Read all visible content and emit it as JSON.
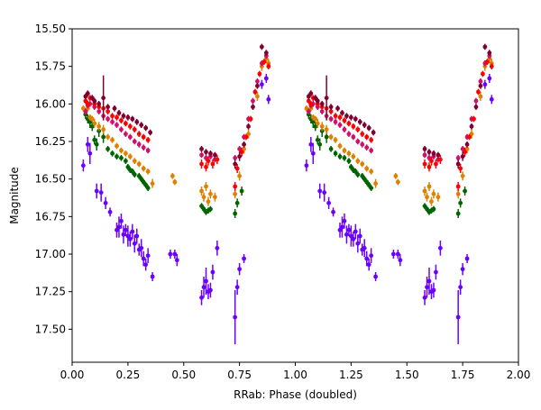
{
  "chart_data": {
    "type": "scatter",
    "xlabel": "RRab: Phase (doubled)",
    "ylabel": "Magnitude",
    "xlim": [
      0.0,
      2.0
    ],
    "ylim": [
      17.72,
      15.5
    ],
    "y_inverted": true,
    "grid": false,
    "legend": "none",
    "xticks": [
      "0.00",
      "0.25",
      "0.50",
      "0.75",
      "1.00",
      "1.25",
      "1.50",
      "1.75",
      "2.00"
    ],
    "yticks": [
      "15.50",
      "15.75",
      "16.00",
      "16.25",
      "16.50",
      "16.75",
      "17.00",
      "17.25",
      "17.50"
    ],
    "xtick_values": [
      0.0,
      0.25,
      0.5,
      0.75,
      1.0,
      1.25,
      1.5,
      1.75,
      2.0
    ],
    "ytick_values": [
      15.5,
      15.75,
      16.0,
      16.25,
      16.5,
      16.75,
      17.0,
      17.25,
      17.5
    ],
    "series": [
      {
        "color": "#6a00ff",
        "points": [
          {
            "x": 0.05,
            "y": 16.41,
            "err": 0.04
          },
          {
            "x": 0.07,
            "y": 16.27,
            "err": 0.05
          },
          {
            "x": 0.08,
            "y": 16.33,
            "err": 0.07
          },
          {
            "x": 0.11,
            "y": 16.58,
            "err": 0.05
          },
          {
            "x": 0.13,
            "y": 16.59,
            "err": 0.06
          },
          {
            "x": 0.15,
            "y": 16.66,
            "err": 0.04
          },
          {
            "x": 0.17,
            "y": 16.72,
            "err": 0.03
          },
          {
            "x": 0.2,
            "y": 16.84,
            "err": 0.05
          },
          {
            "x": 0.21,
            "y": 16.82,
            "err": 0.07
          },
          {
            "x": 0.22,
            "y": 16.78,
            "err": 0.05
          },
          {
            "x": 0.23,
            "y": 16.87,
            "err": 0.06
          },
          {
            "x": 0.24,
            "y": 16.84,
            "err": 0.04
          },
          {
            "x": 0.25,
            "y": 16.88,
            "err": 0.07
          },
          {
            "x": 0.26,
            "y": 16.9,
            "err": 0.05
          },
          {
            "x": 0.27,
            "y": 16.85,
            "err": 0.05
          },
          {
            "x": 0.28,
            "y": 16.93,
            "err": 0.06
          },
          {
            "x": 0.29,
            "y": 16.88,
            "err": 0.05
          },
          {
            "x": 0.3,
            "y": 16.97,
            "err": 0.04
          },
          {
            "x": 0.31,
            "y": 16.96,
            "err": 0.06
          },
          {
            "x": 0.32,
            "y": 17.03,
            "err": 0.05
          },
          {
            "x": 0.33,
            "y": 17.07,
            "err": 0.04
          },
          {
            "x": 0.34,
            "y": 17.01,
            "err": 0.05
          },
          {
            "x": 0.36,
            "y": 17.15,
            "err": 0.03
          },
          {
            "x": 0.44,
            "y": 17.0,
            "err": 0.03
          },
          {
            "x": 0.46,
            "y": 17.0,
            "err": 0.03
          },
          {
            "x": 0.47,
            "y": 17.04,
            "err": 0.04
          },
          {
            "x": 0.58,
            "y": 17.29,
            "err": 0.05
          },
          {
            "x": 0.59,
            "y": 17.22,
            "err": 0.07
          },
          {
            "x": 0.6,
            "y": 17.18,
            "err": 0.09
          },
          {
            "x": 0.61,
            "y": 17.25,
            "err": 0.05
          },
          {
            "x": 0.62,
            "y": 17.24,
            "err": 0.05
          },
          {
            "x": 0.63,
            "y": 17.12,
            "err": 0.05
          },
          {
            "x": 0.65,
            "y": 16.96,
            "err": 0.05
          },
          {
            "x": 0.73,
            "y": 17.42,
            "err": 0.18
          },
          {
            "x": 0.74,
            "y": 17.22,
            "err": 0.05
          },
          {
            "x": 0.75,
            "y": 17.1,
            "err": 0.04
          },
          {
            "x": 0.77,
            "y": 17.03,
            "err": 0.03
          },
          {
            "x": 0.85,
            "y": 15.87,
            "err": 0.03
          },
          {
            "x": 0.87,
            "y": 15.83,
            "err": 0.03
          },
          {
            "x": 0.88,
            "y": 15.97,
            "err": 0.03
          }
        ]
      },
      {
        "color": "#006400",
        "points": [
          {
            "x": 0.06,
            "y": 16.07,
            "err": 0.03
          },
          {
            "x": 0.07,
            "y": 16.1,
            "err": 0.03
          },
          {
            "x": 0.08,
            "y": 16.12,
            "err": 0.04
          },
          {
            "x": 0.09,
            "y": 16.15,
            "err": 0.03
          },
          {
            "x": 0.1,
            "y": 16.24,
            "err": 0.03
          },
          {
            "x": 0.11,
            "y": 16.27,
            "err": 0.04
          },
          {
            "x": 0.12,
            "y": 16.18,
            "err": 0.04
          },
          {
            "x": 0.14,
            "y": 16.22,
            "err": 0.04
          },
          {
            "x": 0.16,
            "y": 16.3,
            "err": 0.02
          },
          {
            "x": 0.18,
            "y": 16.33,
            "err": 0.02
          },
          {
            "x": 0.2,
            "y": 16.35,
            "err": 0.02
          },
          {
            "x": 0.22,
            "y": 16.36,
            "err": 0.02
          },
          {
            "x": 0.24,
            "y": 16.38,
            "err": 0.02
          },
          {
            "x": 0.25,
            "y": 16.42,
            "err": 0.02
          },
          {
            "x": 0.26,
            "y": 16.44,
            "err": 0.02
          },
          {
            "x": 0.27,
            "y": 16.45,
            "err": 0.02
          },
          {
            "x": 0.28,
            "y": 16.47,
            "err": 0.02
          },
          {
            "x": 0.3,
            "y": 16.48,
            "err": 0.02
          },
          {
            "x": 0.31,
            "y": 16.5,
            "err": 0.02
          },
          {
            "x": 0.32,
            "y": 16.52,
            "err": 0.02
          },
          {
            "x": 0.33,
            "y": 16.54,
            "err": 0.02
          },
          {
            "x": 0.34,
            "y": 16.56,
            "err": 0.02
          },
          {
            "x": 0.58,
            "y": 16.68,
            "err": 0.02
          },
          {
            "x": 0.59,
            "y": 16.7,
            "err": 0.02
          },
          {
            "x": 0.6,
            "y": 16.72,
            "err": 0.02
          },
          {
            "x": 0.61,
            "y": 16.71,
            "err": 0.02
          },
          {
            "x": 0.62,
            "y": 16.7,
            "err": 0.02
          },
          {
            "x": 0.73,
            "y": 16.73,
            "err": 0.03
          },
          {
            "x": 0.74,
            "y": 16.66,
            "err": 0.03
          },
          {
            "x": 0.76,
            "y": 16.58,
            "err": 0.03
          }
        ]
      },
      {
        "color": "#e08000",
        "points": [
          {
            "x": 0.05,
            "y": 16.03,
            "err": 0.02
          },
          {
            "x": 0.06,
            "y": 16.05,
            "err": 0.02
          },
          {
            "x": 0.07,
            "y": 16.03,
            "err": 0.02
          },
          {
            "x": 0.08,
            "y": 16.09,
            "err": 0.02
          },
          {
            "x": 0.09,
            "y": 16.1,
            "err": 0.02
          },
          {
            "x": 0.1,
            "y": 16.13,
            "err": 0.03
          },
          {
            "x": 0.12,
            "y": 16.15,
            "err": 0.03
          },
          {
            "x": 0.14,
            "y": 16.17,
            "err": 0.03
          },
          {
            "x": 0.16,
            "y": 16.22,
            "err": 0.02
          },
          {
            "x": 0.18,
            "y": 16.24,
            "err": 0.02
          },
          {
            "x": 0.2,
            "y": 16.28,
            "err": 0.02
          },
          {
            "x": 0.22,
            "y": 16.31,
            "err": 0.02
          },
          {
            "x": 0.24,
            "y": 16.33,
            "err": 0.02
          },
          {
            "x": 0.26,
            "y": 16.35,
            "err": 0.02
          },
          {
            "x": 0.28,
            "y": 16.38,
            "err": 0.02
          },
          {
            "x": 0.3,
            "y": 16.4,
            "err": 0.02
          },
          {
            "x": 0.32,
            "y": 16.43,
            "err": 0.02
          },
          {
            "x": 0.34,
            "y": 16.45,
            "err": 0.02
          },
          {
            "x": 0.36,
            "y": 16.53,
            "err": 0.03
          },
          {
            "x": 0.45,
            "y": 16.48,
            "err": 0.02
          },
          {
            "x": 0.46,
            "y": 16.52,
            "err": 0.02
          },
          {
            "x": 0.58,
            "y": 16.58,
            "err": 0.03
          },
          {
            "x": 0.59,
            "y": 16.62,
            "err": 0.03
          },
          {
            "x": 0.6,
            "y": 16.55,
            "err": 0.03
          },
          {
            "x": 0.61,
            "y": 16.65,
            "err": 0.03
          },
          {
            "x": 0.62,
            "y": 16.6,
            "err": 0.03
          },
          {
            "x": 0.64,
            "y": 16.62,
            "err": 0.03
          },
          {
            "x": 0.73,
            "y": 16.6,
            "err": 0.03
          },
          {
            "x": 0.75,
            "y": 16.48,
            "err": 0.03
          },
          {
            "x": 0.77,
            "y": 16.3,
            "err": 0.03
          },
          {
            "x": 0.79,
            "y": 16.2,
            "err": 0.03
          },
          {
            "x": 0.83,
            "y": 15.95,
            "err": 0.03
          },
          {
            "x": 0.85,
            "y": 15.75,
            "err": 0.03
          },
          {
            "x": 0.87,
            "y": 15.7,
            "err": 0.03
          },
          {
            "x": 0.88,
            "y": 15.73,
            "err": 0.03
          }
        ]
      },
      {
        "color": "#d0106a",
        "points": [
          {
            "x": 0.06,
            "y": 16.05,
            "err": 0.02
          },
          {
            "x": 0.07,
            "y": 16.01,
            "err": 0.02
          },
          {
            "x": 0.08,
            "y": 16.0,
            "err": 0.02
          },
          {
            "x": 0.1,
            "y": 16.02,
            "err": 0.02
          },
          {
            "x": 0.12,
            "y": 16.05,
            "err": 0.02
          },
          {
            "x": 0.14,
            "y": 16.08,
            "err": 0.02
          },
          {
            "x": 0.16,
            "y": 16.1,
            "err": 0.02
          },
          {
            "x": 0.18,
            "y": 16.12,
            "err": 0.02
          },
          {
            "x": 0.2,
            "y": 16.14,
            "err": 0.02
          },
          {
            "x": 0.22,
            "y": 16.17,
            "err": 0.02
          },
          {
            "x": 0.24,
            "y": 16.2,
            "err": 0.02
          },
          {
            "x": 0.26,
            "y": 16.22,
            "err": 0.02
          },
          {
            "x": 0.28,
            "y": 16.25,
            "err": 0.02
          },
          {
            "x": 0.3,
            "y": 16.27,
            "err": 0.02
          },
          {
            "x": 0.32,
            "y": 16.29,
            "err": 0.02
          },
          {
            "x": 0.34,
            "y": 16.31,
            "err": 0.02
          },
          {
            "x": 0.58,
            "y": 16.34,
            "err": 0.02
          },
          {
            "x": 0.6,
            "y": 16.36,
            "err": 0.02
          },
          {
            "x": 0.62,
            "y": 16.35,
            "err": 0.02
          },
          {
            "x": 0.64,
            "y": 16.37,
            "err": 0.02
          },
          {
            "x": 0.73,
            "y": 16.36,
            "err": 0.02
          },
          {
            "x": 0.75,
            "y": 16.3,
            "err": 0.02
          },
          {
            "x": 0.77,
            "y": 16.22,
            "err": 0.02
          },
          {
            "x": 0.79,
            "y": 16.1,
            "err": 0.02
          },
          {
            "x": 0.81,
            "y": 15.98,
            "err": 0.02
          },
          {
            "x": 0.83,
            "y": 15.85,
            "err": 0.02
          },
          {
            "x": 0.85,
            "y": 15.73,
            "err": 0.02
          },
          {
            "x": 0.87,
            "y": 15.68,
            "err": 0.02
          }
        ]
      },
      {
        "color": "#ff0000",
        "points": [
          {
            "x": 0.06,
            "y": 15.98,
            "err": 0.02
          },
          {
            "x": 0.07,
            "y": 16.0,
            "err": 0.02
          },
          {
            "x": 0.08,
            "y": 15.96,
            "err": 0.02
          },
          {
            "x": 0.1,
            "y": 16.0,
            "err": 0.02
          },
          {
            "x": 0.12,
            "y": 16.02,
            "err": 0.02
          },
          {
            "x": 0.14,
            "y": 16.03,
            "err": 0.02
          },
          {
            "x": 0.16,
            "y": 16.05,
            "err": 0.02
          },
          {
            "x": 0.18,
            "y": 16.08,
            "err": 0.02
          },
          {
            "x": 0.2,
            "y": 16.09,
            "err": 0.02
          },
          {
            "x": 0.22,
            "y": 16.11,
            "err": 0.02
          },
          {
            "x": 0.24,
            "y": 16.13,
            "err": 0.02
          },
          {
            "x": 0.26,
            "y": 16.15,
            "err": 0.02
          },
          {
            "x": 0.28,
            "y": 16.17,
            "err": 0.02
          },
          {
            "x": 0.3,
            "y": 16.2,
            "err": 0.02
          },
          {
            "x": 0.32,
            "y": 16.22,
            "err": 0.02
          },
          {
            "x": 0.34,
            "y": 16.24,
            "err": 0.02
          },
          {
            "x": 0.58,
            "y": 16.4,
            "err": 0.03
          },
          {
            "x": 0.6,
            "y": 16.42,
            "err": 0.03
          },
          {
            "x": 0.61,
            "y": 16.38,
            "err": 0.03
          },
          {
            "x": 0.63,
            "y": 16.4,
            "err": 0.03
          },
          {
            "x": 0.65,
            "y": 16.37,
            "err": 0.03
          },
          {
            "x": 0.73,
            "y": 16.55,
            "err": 0.03
          },
          {
            "x": 0.74,
            "y": 16.43,
            "err": 0.03
          },
          {
            "x": 0.76,
            "y": 16.32,
            "err": 0.03
          },
          {
            "x": 0.78,
            "y": 16.22,
            "err": 0.02
          },
          {
            "x": 0.8,
            "y": 16.1,
            "err": 0.02
          },
          {
            "x": 0.82,
            "y": 15.92,
            "err": 0.02
          },
          {
            "x": 0.84,
            "y": 15.8,
            "err": 0.02
          },
          {
            "x": 0.86,
            "y": 15.72,
            "err": 0.02
          },
          {
            "x": 0.88,
            "y": 15.75,
            "err": 0.02
          }
        ]
      },
      {
        "color": "#800030",
        "points": [
          {
            "x": 0.06,
            "y": 15.95,
            "err": 0.02
          },
          {
            "x": 0.07,
            "y": 15.93,
            "err": 0.02
          },
          {
            "x": 0.09,
            "y": 15.96,
            "err": 0.02
          },
          {
            "x": 0.1,
            "y": 15.98,
            "err": 0.02
          },
          {
            "x": 0.12,
            "y": 16.0,
            "err": 0.02
          },
          {
            "x": 0.14,
            "y": 15.96,
            "err": 0.15
          },
          {
            "x": 0.16,
            "y": 16.02,
            "err": 0.02
          },
          {
            "x": 0.19,
            "y": 16.03,
            "err": 0.02
          },
          {
            "x": 0.21,
            "y": 16.06,
            "err": 0.02
          },
          {
            "x": 0.23,
            "y": 16.08,
            "err": 0.02
          },
          {
            "x": 0.25,
            "y": 16.09,
            "err": 0.02
          },
          {
            "x": 0.27,
            "y": 16.1,
            "err": 0.02
          },
          {
            "x": 0.29,
            "y": 16.12,
            "err": 0.02
          },
          {
            "x": 0.31,
            "y": 16.14,
            "err": 0.02
          },
          {
            "x": 0.33,
            "y": 16.16,
            "err": 0.02
          },
          {
            "x": 0.35,
            "y": 16.19,
            "err": 0.02
          },
          {
            "x": 0.58,
            "y": 16.3,
            "err": 0.02
          },
          {
            "x": 0.6,
            "y": 16.32,
            "err": 0.02
          },
          {
            "x": 0.62,
            "y": 16.33,
            "err": 0.02
          },
          {
            "x": 0.64,
            "y": 16.34,
            "err": 0.02
          },
          {
            "x": 0.73,
            "y": 16.4,
            "err": 0.03
          },
          {
            "x": 0.75,
            "y": 16.35,
            "err": 0.03
          },
          {
            "x": 0.77,
            "y": 16.27,
            "err": 0.02
          },
          {
            "x": 0.79,
            "y": 16.15,
            "err": 0.02
          },
          {
            "x": 0.81,
            "y": 16.02,
            "err": 0.02
          },
          {
            "x": 0.83,
            "y": 15.88,
            "err": 0.02
          },
          {
            "x": 0.85,
            "y": 15.62,
            "err": 0.02
          },
          {
            "x": 0.87,
            "y": 15.66,
            "err": 0.02
          }
        ]
      }
    ]
  }
}
